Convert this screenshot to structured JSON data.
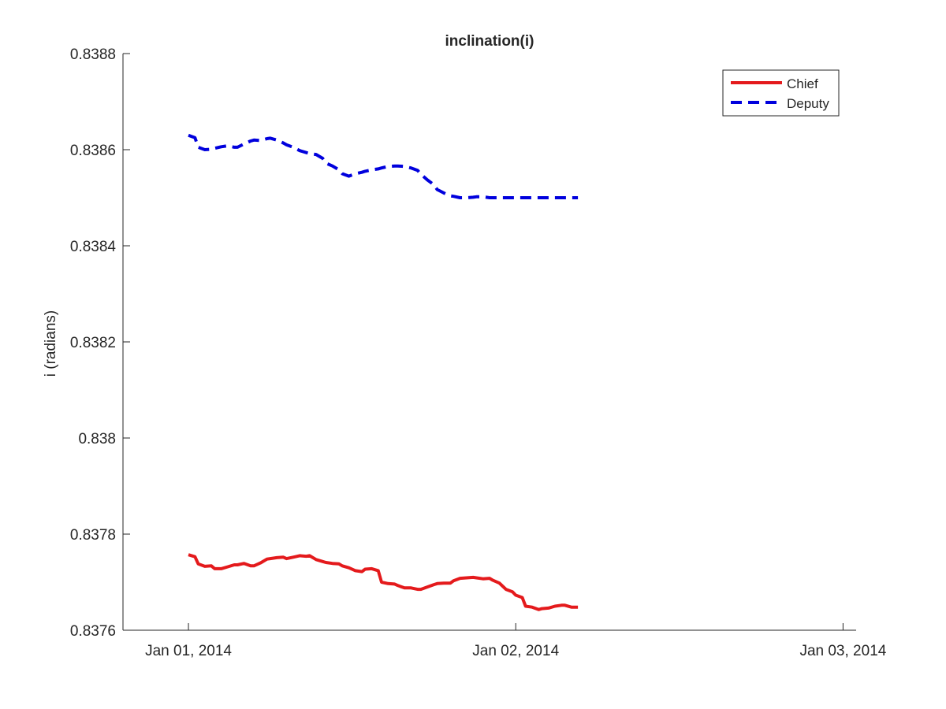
{
  "chart_data": {
    "type": "line",
    "title": "inclination(i)",
    "xlabel": "",
    "ylabel": "i (radians)",
    "ylim": [
      0.8376,
      0.8388
    ],
    "xlim_days": [
      -0.2,
      2.04
    ],
    "yticks": [
      {
        "value": 0.8376,
        "label": "0.8376"
      },
      {
        "value": 0.8378,
        "label": "0.8378"
      },
      {
        "value": 0.838,
        "label": "0.838"
      },
      {
        "value": 0.8382,
        "label": "0.8382"
      },
      {
        "value": 0.8384,
        "label": "0.8384"
      },
      {
        "value": 0.8386,
        "label": "0.8386"
      },
      {
        "value": 0.8388,
        "label": "0.8388"
      }
    ],
    "xticks": [
      {
        "value": 0,
        "label": "Jan 01, 2014"
      },
      {
        "value": 1,
        "label": "Jan 02, 2014"
      },
      {
        "value": 2,
        "label": "Jan 03, 2014"
      }
    ],
    "x_unit": "days since Jan 01, 2014",
    "legend": {
      "location": "top-right"
    },
    "series": [
      {
        "name": "Chief",
        "color": "#e41a1c",
        "style": "solid",
        "x": [
          0.0,
          0.02,
          0.03,
          0.05,
          0.07,
          0.08,
          0.1,
          0.12,
          0.14,
          0.15,
          0.17,
          0.19,
          0.2,
          0.22,
          0.24,
          0.25,
          0.27,
          0.29,
          0.3,
          0.32,
          0.34,
          0.36,
          0.37,
          0.39,
          0.41,
          0.42,
          0.44,
          0.46,
          0.47,
          0.49,
          0.51,
          0.53,
          0.54,
          0.56,
          0.58,
          0.59,
          0.61,
          0.63,
          0.64,
          0.66,
          0.68,
          0.7,
          0.71,
          0.73,
          0.75,
          0.76,
          0.78,
          0.8,
          0.81,
          0.83,
          0.85,
          0.87,
          0.88,
          0.9,
          0.92,
          0.93,
          0.95,
          0.97,
          0.99,
          1.0,
          1.02,
          1.03,
          1.05,
          1.07,
          1.08,
          1.1,
          1.12,
          1.14,
          1.15,
          1.17,
          1.19
        ],
        "y": [
          0.837757,
          0.837753,
          0.837738,
          0.837733,
          0.837734,
          0.837728,
          0.837728,
          0.837732,
          0.837736,
          0.837736,
          0.837739,
          0.837734,
          0.837734,
          0.83774,
          0.837748,
          0.837749,
          0.837751,
          0.837752,
          0.837749,
          0.837752,
          0.837755,
          0.837754,
          0.837755,
          0.837747,
          0.837743,
          0.837741,
          0.837739,
          0.837738,
          0.837734,
          0.83773,
          0.837724,
          0.837722,
          0.837727,
          0.837728,
          0.837724,
          0.8377,
          0.837697,
          0.837696,
          0.837693,
          0.837688,
          0.837688,
          0.837685,
          0.837685,
          0.83769,
          0.837695,
          0.837697,
          0.837698,
          0.837698,
          0.837703,
          0.837708,
          0.837709,
          0.83771,
          0.837709,
          0.837707,
          0.837708,
          0.837704,
          0.837698,
          0.837685,
          0.83768,
          0.837673,
          0.837668,
          0.83765,
          0.837648,
          0.837643,
          0.837645,
          0.837646,
          0.83765,
          0.837652,
          0.837652,
          0.837648,
          0.837648
        ]
      },
      {
        "name": "Deputy",
        "color": "#0000dd",
        "style": "dashed",
        "x": [
          0.0,
          0.02,
          0.03,
          0.05,
          0.07,
          0.08,
          0.1,
          0.12,
          0.14,
          0.15,
          0.17,
          0.19,
          0.2,
          0.22,
          0.24,
          0.25,
          0.27,
          0.29,
          0.3,
          0.32,
          0.34,
          0.36,
          0.37,
          0.39,
          0.41,
          0.42,
          0.44,
          0.46,
          0.47,
          0.49,
          0.51,
          0.53,
          0.54,
          0.56,
          0.58,
          0.59,
          0.61,
          0.63,
          0.64,
          0.66,
          0.68,
          0.7,
          0.71,
          0.73,
          0.75,
          0.76,
          0.78,
          0.8,
          0.81,
          0.83,
          0.85,
          0.87,
          0.88,
          0.9,
          0.92,
          0.93,
          0.95,
          0.97,
          0.99,
          1.0,
          1.02,
          1.03,
          1.05,
          1.07,
          1.08,
          1.1,
          1.12,
          1.14,
          1.15,
          1.17,
          1.19
        ],
        "y": [
          0.83863,
          0.838625,
          0.838605,
          0.8386,
          0.838601,
          0.838603,
          0.838606,
          0.838608,
          0.838605,
          0.838605,
          0.838612,
          0.838618,
          0.83862,
          0.838619,
          0.838623,
          0.838624,
          0.83862,
          0.838614,
          0.83861,
          0.838605,
          0.838598,
          0.838594,
          0.838592,
          0.83859,
          0.838582,
          0.838572,
          0.838566,
          0.838558,
          0.83855,
          0.838545,
          0.83855,
          0.838553,
          0.838555,
          0.838558,
          0.83856,
          0.838562,
          0.838565,
          0.838566,
          0.838566,
          0.838565,
          0.838562,
          0.838557,
          0.838549,
          0.838537,
          0.838527,
          0.838517,
          0.83851,
          0.838504,
          0.838503,
          0.8385,
          0.8385,
          0.838501,
          0.838502,
          0.838502,
          0.8385,
          0.8385,
          0.8385,
          0.8385,
          0.8385,
          0.8385,
          0.8385,
          0.8385,
          0.8385,
          0.8385,
          0.8385,
          0.8385,
          0.8385,
          0.8385,
          0.8385,
          0.8385,
          0.8385
        ]
      }
    ]
  }
}
